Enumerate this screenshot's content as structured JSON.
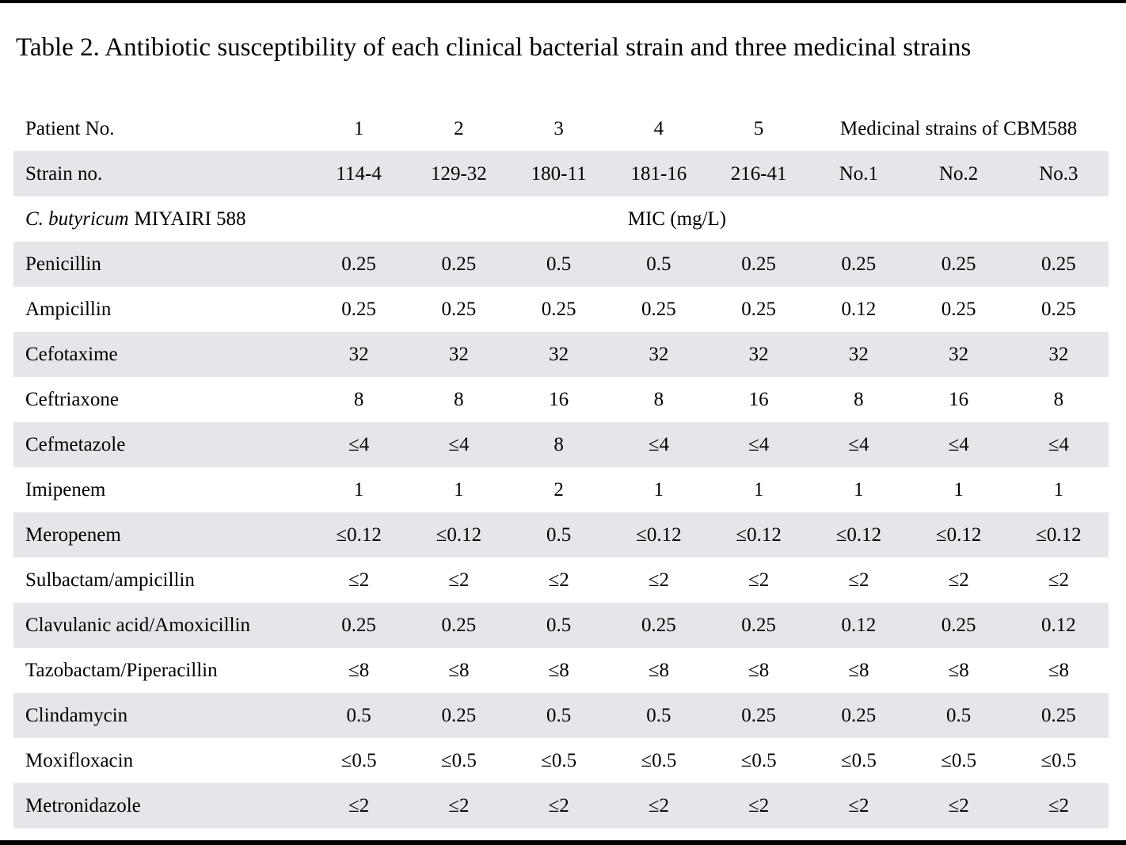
{
  "title": "Table 2. Antibiotic susceptibility of each clinical bacterial strain and three medicinal strains",
  "colors": {
    "row_shade": "#e4e6ea",
    "rule": "#000000",
    "text": "#000000",
    "background": "#ffffff"
  },
  "table": {
    "patient_header": {
      "label": "Patient No.",
      "patients": [
        "1",
        "2",
        "3",
        "4",
        "5"
      ],
      "medicinal_label": "Medicinal strains of CBM588"
    },
    "strain_header": {
      "label": "Strain no.",
      "strains": [
        "114-4",
        "129-32",
        "180-11",
        "181-16",
        "216-41",
        "No.1",
        "No.2",
        "No.3"
      ]
    },
    "species_header": {
      "species_italic": "C. butyricum",
      "species_rest": "MIYAIRI 588",
      "mic_label": "MIC (mg/L)"
    },
    "antibiotics": [
      {
        "name": "Penicillin",
        "values": [
          "0.25",
          "0.25",
          "0.5",
          "0.5",
          "0.25",
          "0.25",
          "0.25",
          "0.25"
        ]
      },
      {
        "name": "Ampicillin",
        "values": [
          "0.25",
          "0.25",
          "0.25",
          "0.25",
          "0.25",
          "0.12",
          "0.25",
          "0.25"
        ]
      },
      {
        "name": "Cefotaxime",
        "values": [
          "32",
          "32",
          "32",
          "32",
          "32",
          "32",
          "32",
          "32"
        ]
      },
      {
        "name": "Ceftriaxone",
        "values": [
          "8",
          "8",
          "16",
          "8",
          "16",
          "8",
          "16",
          "8"
        ]
      },
      {
        "name": "Cefmetazole",
        "values": [
          "≤4",
          "≤4",
          "8",
          "≤4",
          "≤4",
          "≤4",
          "≤4",
          "≤4"
        ]
      },
      {
        "name": "Imipenem",
        "values": [
          "1",
          "1",
          "2",
          "1",
          "1",
          "1",
          "1",
          "1"
        ]
      },
      {
        "name": "Meropenem",
        "values": [
          "≤0.12",
          "≤0.12",
          "0.5",
          "≤0.12",
          "≤0.12",
          "≤0.12",
          "≤0.12",
          "≤0.12"
        ]
      },
      {
        "name": "Sulbactam/ampicillin",
        "values": [
          "≤2",
          "≤2",
          "≤2",
          "≤2",
          "≤2",
          "≤2",
          "≤2",
          "≤2"
        ]
      },
      {
        "name": "Clavulanic acid/Amoxicillin",
        "values": [
          "0.25",
          "0.25",
          "0.5",
          "0.25",
          "0.25",
          "0.12",
          "0.25",
          "0.12"
        ]
      },
      {
        "name": "Tazobactam/Piperacillin",
        "values": [
          "≤8",
          "≤8",
          "≤8",
          "≤8",
          "≤8",
          "≤8",
          "≤8",
          "≤8"
        ]
      },
      {
        "name": "Clindamycin",
        "values": [
          "0.5",
          "0.25",
          "0.5",
          "0.5",
          "0.25",
          "0.25",
          "0.5",
          "0.25"
        ]
      },
      {
        "name": "Moxifloxacin",
        "values": [
          "≤0.5",
          "≤0.5",
          "≤0.5",
          "≤0.5",
          "≤0.5",
          "≤0.5",
          "≤0.5",
          "≤0.5"
        ]
      },
      {
        "name": "Metronidazole",
        "values": [
          "≤2",
          "≤2",
          "≤2",
          "≤2",
          "≤2",
          "≤2",
          "≤2",
          "≤2"
        ]
      }
    ]
  }
}
